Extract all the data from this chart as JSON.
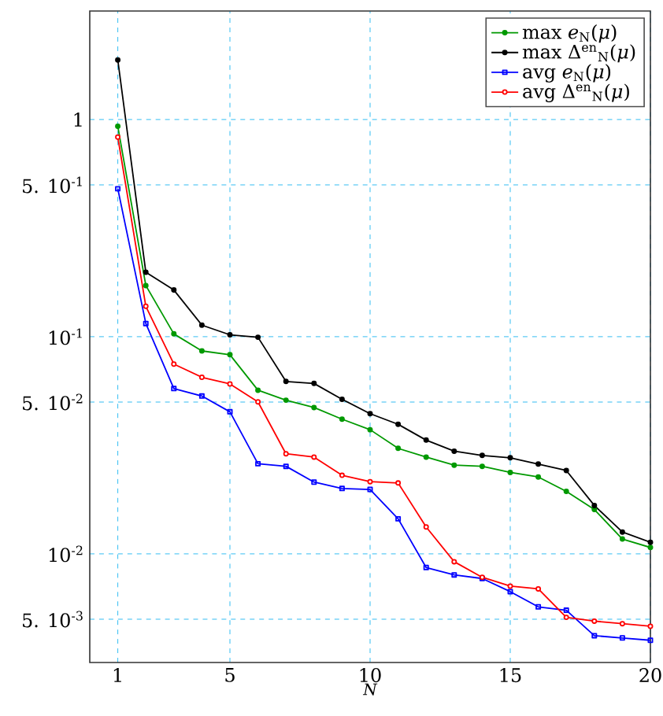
{
  "chart_data": {
    "type": "line",
    "xlabel": "N",
    "log": "y",
    "grid": true,
    "legend": "top right",
    "line_style": "solid",
    "x": [
      1,
      2,
      3,
      4,
      5,
      6,
      7,
      8,
      9,
      10,
      11,
      12,
      13,
      14,
      15,
      16,
      17,
      18,
      19,
      20
    ],
    "xlim": [
      0,
      20
    ],
    "xticks": [
      1,
      5,
      10,
      15,
      20
    ],
    "ylim": [
      0.00316,
      3.16
    ],
    "yticks": [
      {
        "value": 0.005,
        "label": "5. 10$^{-3}$"
      },
      {
        "value": 0.01,
        "label": "10$^{-2}$"
      },
      {
        "value": 0.05,
        "label": "5. 10$^{-2}$"
      },
      {
        "value": 0.1,
        "label": "10$^{-1}$"
      },
      {
        "value": 0.5,
        "label": "5. 10$^{-1}$"
      },
      1
    ],
    "series": [
      {
        "name": "max *e*$_{N}$(*μ*)",
        "color": "#009900",
        "marker": "circle",
        "values": [
          0.93,
          0.172,
          0.103,
          0.086,
          0.0826,
          0.0567,
          0.051,
          0.0472,
          0.0417,
          0.0373,
          0.0306,
          0.0279,
          0.0256,
          0.0253,
          0.0237,
          0.0226,
          0.0194,
          0.016,
          0.0117,
          0.0107
        ]
      },
      {
        "name": "max Δ$^{en}$$_{N}$(*μ*)",
        "color": "#000000",
        "marker": "circle",
        "values": [
          1.88,
          0.198,
          0.164,
          0.113,
          0.102,
          0.0994,
          0.0622,
          0.0609,
          0.0515,
          0.0442,
          0.0395,
          0.0334,
          0.0297,
          0.0284,
          0.0277,
          0.0259,
          0.0242,
          0.0167,
          0.0126,
          0.0113
        ]
      },
      {
        "name": "avg *e*$_{N}$(*μ*)",
        "color": "#0000ff",
        "marker": "square",
        "values": [
          0.48,
          0.115,
          0.0577,
          0.0533,
          0.0451,
          0.026,
          0.0253,
          0.0214,
          0.02,
          0.0198,
          0.0145,
          0.00865,
          0.008,
          0.0077,
          0.0067,
          0.0057,
          0.0055,
          0.0042,
          0.0041,
          0.004
        ]
      },
      {
        "name": "avg Δ$^{en}$$_{N}$(*μ*)",
        "color": "#ff0000",
        "marker": "circle",
        "values": [
          0.83,
          0.138,
          0.0748,
          0.065,
          0.0606,
          0.0501,
          0.0289,
          0.0279,
          0.023,
          0.0215,
          0.0212,
          0.0133,
          0.0092,
          0.0078,
          0.0071,
          0.0069,
          0.0051,
          0.0049,
          0.00477,
          0.00464
        ]
      }
    ]
  }
}
